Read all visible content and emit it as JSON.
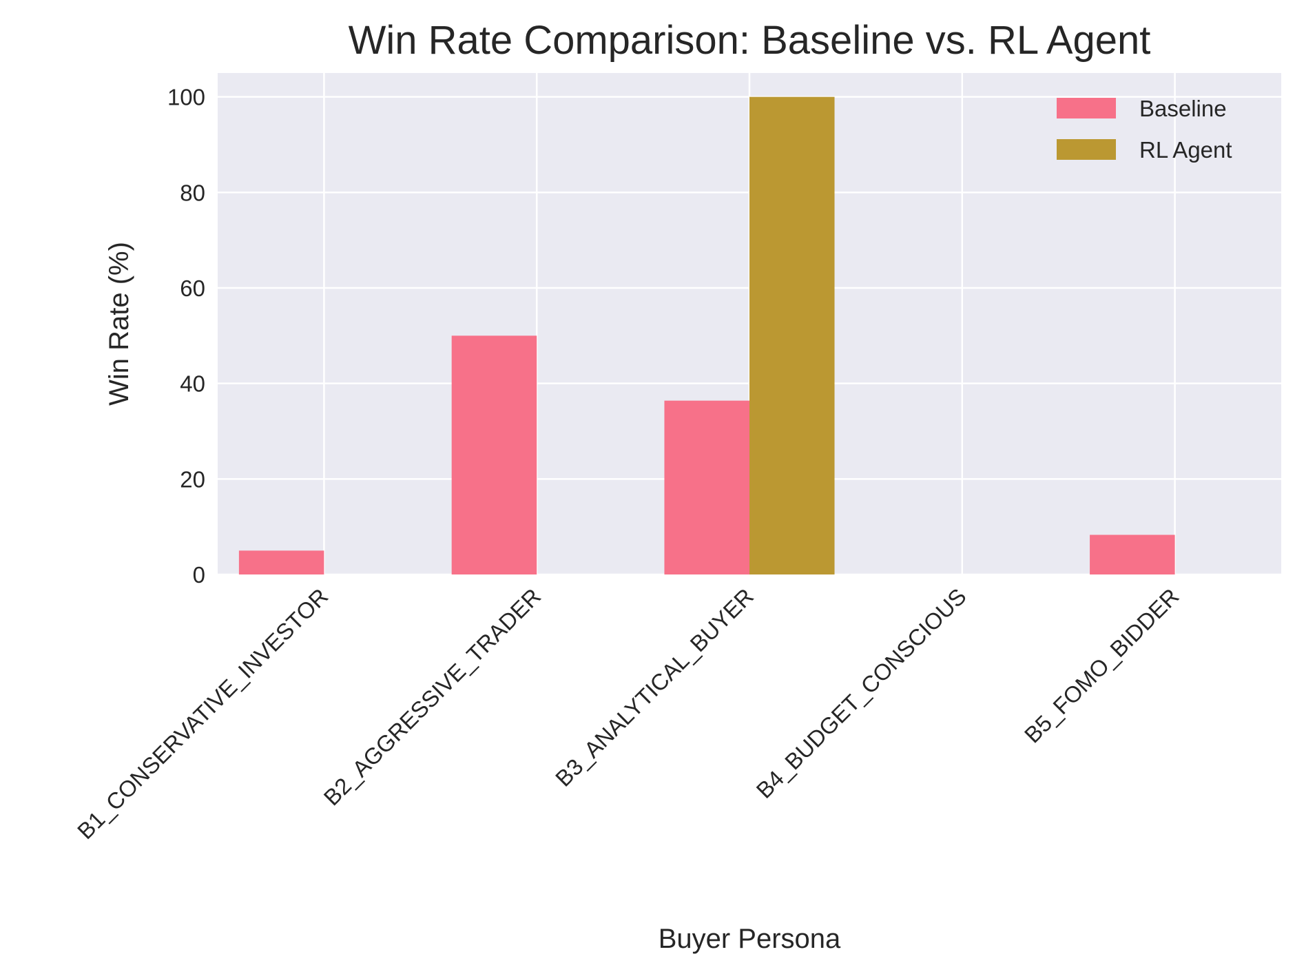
{
  "chart_data": {
    "type": "bar",
    "title": "Win Rate Comparison: Baseline vs. RL Agent",
    "xlabel": "Buyer Persona",
    "ylabel": "Win Rate (%)",
    "categories": [
      "B1_CONSERVATIVE_INVESTOR",
      "B2_AGGRESSIVE_TRADER",
      "B3_ANALYTICAL_BUYER",
      "B4_BUDGET_CONSCIOUS",
      "B5_FOMO_BIDDER"
    ],
    "series": [
      {
        "name": "Baseline",
        "color": "#f77189",
        "values": [
          5,
          50,
          36.4,
          0,
          8.3
        ]
      },
      {
        "name": "RL Agent",
        "color": "#bb9832",
        "values": [
          0,
          0,
          100,
          0,
          0
        ]
      }
    ],
    "ylim": [
      0,
      105
    ],
    "yticks": [
      0,
      20,
      40,
      60,
      80,
      100
    ],
    "grid": true,
    "legend_position": "top-right",
    "background_color": "#eaeaf2",
    "grid_color": "#ffffff"
  }
}
